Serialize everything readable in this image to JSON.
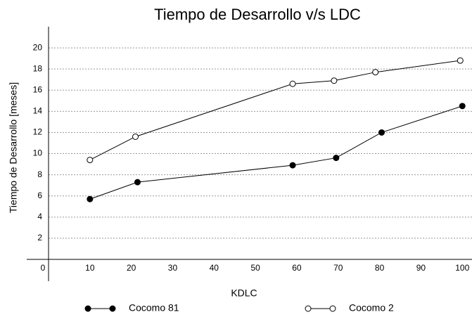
{
  "chart_data": {
    "type": "line",
    "title": "Tiempo de Desarrollo v/s LDC",
    "x_label": "KDLC",
    "y_label": "Tiempo de Desarrollo [meses]",
    "xlim": [
      0,
      102
    ],
    "xticks": [
      0,
      10,
      20,
      30,
      40,
      50,
      60,
      70,
      80,
      90,
      100
    ],
    "ylim": [
      0,
      22
    ],
    "yticks": [
      2,
      4,
      6,
      8,
      10,
      12,
      14,
      16,
      18,
      20
    ],
    "grid": true,
    "legend": "bottom",
    "series": [
      {
        "name": "Cocomo 81",
        "color": "#000000",
        "marker_fill": "#000000",
        "x": [
          10,
          21.5,
          59,
          69.5,
          80.5,
          100
        ],
        "values": [
          5.7,
          7.3,
          8.9,
          9.6,
          12.0,
          14.5
        ]
      },
      {
        "name": "Cocomo  2",
        "color": "#000000",
        "marker_fill": "#ffffff",
        "x": [
          10,
          21,
          59,
          69,
          79,
          99.5
        ],
        "values": [
          9.4,
          11.6,
          16.6,
          16.9,
          17.7,
          18.8
        ]
      }
    ]
  }
}
